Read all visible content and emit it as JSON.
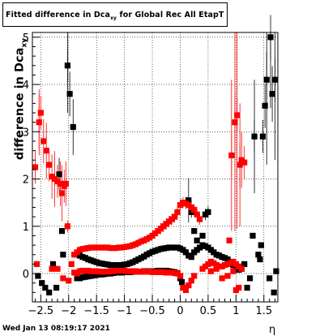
{
  "title": {
    "main": "Fitted difference in Dca",
    "sub": "xy",
    "tail": " for Global Rec All EtapT"
  },
  "ylabel": {
    "main": "difference in Dca",
    "sub": "xy"
  },
  "xlabel": "η",
  "footer": "Wed Jan 13 08:19:17 2021",
  "colors": {
    "black": "#000000",
    "red": "#ff0000",
    "grid": "#000000"
  },
  "chart_data": {
    "type": "scatter",
    "xlim": [
      -2.65,
      1.75
    ],
    "ylim": [
      -0.6,
      5.1
    ],
    "grid": true,
    "x_ticks": [
      -2.5,
      -2,
      -1.5,
      -1,
      -0.5,
      0,
      0.5,
      1,
      1.5
    ],
    "x_tick_labels": [
      "−2.5",
      "−2",
      "−1.5",
      "−1",
      "−0.5",
      "0",
      "0.5",
      "1",
      "1.5"
    ],
    "y_ticks": [
      0,
      1,
      2,
      3,
      4,
      5
    ],
    "y_tick_labels": [
      "0",
      "1",
      "2",
      "3",
      "4",
      "5"
    ],
    "series": [
      {
        "color": "#000000",
        "points": [
          [
            -2.55,
            -0.05
          ],
          [
            -2.48,
            -0.2
          ],
          [
            -2.42,
            -0.3
          ],
          [
            -2.35,
            -0.4
          ],
          [
            -2.28,
            0.2
          ],
          [
            -2.22,
            -0.3
          ],
          [
            -2.17,
            2.1
          ],
          [
            -2.12,
            0.9
          ],
          [
            -2.1,
            0.4
          ],
          [
            -2.02,
            4.4
          ],
          [
            -1.98,
            3.8
          ],
          [
            -1.92,
            3.1
          ],
          [
            -1.85,
            -0.1
          ],
          [
            -1.8,
            -0.1
          ],
          [
            -1.75,
            -0.08
          ],
          [
            -1.7,
            -0.07
          ],
          [
            -1.65,
            -0.06
          ],
          [
            -1.6,
            -0.05
          ],
          [
            -1.55,
            -0.04
          ],
          [
            -1.5,
            -0.03
          ],
          [
            -1.45,
            -0.02
          ],
          [
            -1.4,
            -0.02
          ],
          [
            -1.35,
            -0.01
          ],
          [
            -1.3,
            0.0
          ],
          [
            -1.25,
            0.0
          ],
          [
            -1.2,
            0.01
          ],
          [
            -1.15,
            0.02
          ],
          [
            -1.1,
            0.02
          ],
          [
            -1.05,
            0.02
          ],
          [
            -1.0,
            0.03
          ],
          [
            -0.95,
            0.03
          ],
          [
            -0.9,
            0.03
          ],
          [
            -0.85,
            0.04
          ],
          [
            -0.8,
            0.04
          ],
          [
            -0.75,
            0.04
          ],
          [
            -0.7,
            0.04
          ],
          [
            -0.65,
            0.05
          ],
          [
            -0.6,
            0.05
          ],
          [
            -0.55,
            0.05
          ],
          [
            -0.5,
            0.05
          ],
          [
            -0.45,
            0.05
          ],
          [
            -0.4,
            0.06
          ],
          [
            -0.35,
            0.06
          ],
          [
            -0.3,
            0.06
          ],
          [
            -0.25,
            0.06
          ],
          [
            -0.2,
            0.05
          ],
          [
            -0.15,
            0.04
          ],
          [
            -0.1,
            0.03
          ],
          [
            -0.05,
            0.01
          ],
          [
            0.0,
            -0.1
          ],
          [
            0.03,
            -0.18
          ],
          [
            -1.85,
            0.4
          ],
          [
            -1.8,
            0.38
          ],
          [
            -1.75,
            0.35
          ],
          [
            -1.7,
            0.33
          ],
          [
            -1.65,
            0.3
          ],
          [
            -1.6,
            0.28
          ],
          [
            -1.55,
            0.26
          ],
          [
            -1.5,
            0.24
          ],
          [
            -1.45,
            0.22
          ],
          [
            -1.4,
            0.21
          ],
          [
            -1.35,
            0.2
          ],
          [
            -1.3,
            0.19
          ],
          [
            -1.25,
            0.18
          ],
          [
            -1.2,
            0.18
          ],
          [
            -1.15,
            0.18
          ],
          [
            -1.1,
            0.18
          ],
          [
            -1.05,
            0.18
          ],
          [
            -1.0,
            0.19
          ],
          [
            -0.95,
            0.2
          ],
          [
            -0.9,
            0.22
          ],
          [
            -0.85,
            0.24
          ],
          [
            -0.8,
            0.27
          ],
          [
            -0.75,
            0.3
          ],
          [
            -0.7,
            0.33
          ],
          [
            -0.65,
            0.36
          ],
          [
            -0.6,
            0.4
          ],
          [
            -0.55,
            0.43
          ],
          [
            -0.5,
            0.46
          ],
          [
            -0.45,
            0.48
          ],
          [
            -0.4,
            0.5
          ],
          [
            -0.35,
            0.52
          ],
          [
            -0.3,
            0.53
          ],
          [
            -0.25,
            0.54
          ],
          [
            -0.2,
            0.55
          ],
          [
            -0.15,
            0.55
          ],
          [
            -0.1,
            0.55
          ],
          [
            -0.05,
            0.55
          ],
          [
            0.0,
            0.53
          ],
          [
            0.05,
            0.5
          ],
          [
            0.1,
            0.45
          ],
          [
            0.15,
            0.38
          ],
          [
            0.2,
            0.35
          ],
          [
            0.25,
            0.45
          ],
          [
            0.3,
            0.5
          ],
          [
            0.35,
            0.55
          ],
          [
            0.4,
            0.6
          ],
          [
            0.45,
            0.58
          ],
          [
            0.5,
            0.55
          ],
          [
            0.55,
            0.5
          ],
          [
            0.6,
            0.45
          ],
          [
            0.65,
            0.4
          ],
          [
            0.7,
            0.38
          ],
          [
            0.75,
            0.35
          ],
          [
            0.8,
            0.33
          ],
          [
            0.85,
            0.3
          ],
          [
            0.9,
            0.25
          ],
          [
            0.95,
            0.18
          ],
          [
            1.0,
            0.12
          ],
          [
            1.05,
            0.08
          ],
          [
            1.1,
            0.1
          ],
          [
            0.1,
            1.5
          ],
          [
            0.15,
            1.55
          ],
          [
            0.2,
            1.3
          ],
          [
            0.25,
            0.9
          ],
          [
            0.3,
            0.7
          ],
          [
            0.4,
            0.8
          ],
          [
            0.45,
            1.25
          ],
          [
            0.5,
            1.3
          ],
          [
            1.15,
            0.2
          ],
          [
            1.2,
            -0.3
          ],
          [
            1.25,
            -0.1
          ],
          [
            1.3,
            0.8
          ],
          [
            1.33,
            2.9
          ],
          [
            1.4,
            0.4
          ],
          [
            1.45,
            0.6
          ],
          [
            1.48,
            2.9
          ],
          [
            1.52,
            3.55
          ],
          [
            1.55,
            4.1
          ],
          [
            1.6,
            -0.1
          ],
          [
            1.62,
            5.0
          ],
          [
            1.65,
            3.8
          ],
          [
            1.68,
            -0.4
          ],
          [
            1.7,
            4.1
          ],
          [
            1.72,
            0.05
          ],
          [
            1.43,
            0.3
          ]
        ]
      },
      {
        "color": "#ff0000",
        "points": [
          [
            -2.6,
            2.25
          ],
          [
            -2.57,
            0.2
          ],
          [
            -2.53,
            3.2
          ],
          [
            -2.5,
            3.4
          ],
          [
            -2.45,
            2.8
          ],
          [
            -2.4,
            2.6
          ],
          [
            -2.35,
            2.3
          ],
          [
            -2.3,
            2.05
          ],
          [
            -2.25,
            2.0
          ],
          [
            -2.2,
            1.95
          ],
          [
            -2.15,
            1.9
          ],
          [
            -2.12,
            1.7
          ],
          [
            -2.08,
            1.85
          ],
          [
            -2.05,
            1.9
          ],
          [
            -2.02,
            1.0
          ],
          [
            -2.3,
            0.1
          ],
          [
            -2.2,
            0.1
          ],
          [
            -2.1,
            -0.1
          ],
          [
            -2.0,
            -0.15
          ],
          [
            -1.95,
            0.2
          ],
          [
            -1.9,
            0.4
          ],
          [
            -1.85,
            0.45
          ],
          [
            -1.8,
            0.5
          ],
          [
            -1.75,
            0.52
          ],
          [
            -1.7,
            0.53
          ],
          [
            -1.65,
            0.54
          ],
          [
            -1.6,
            0.55
          ],
          [
            -1.55,
            0.55
          ],
          [
            -1.5,
            0.55
          ],
          [
            -1.45,
            0.55
          ],
          [
            -1.4,
            0.55
          ],
          [
            -1.35,
            0.55
          ],
          [
            -1.3,
            0.55
          ],
          [
            -1.25,
            0.54
          ],
          [
            -1.2,
            0.54
          ],
          [
            -1.15,
            0.54
          ],
          [
            -1.1,
            0.55
          ],
          [
            -1.05,
            0.55
          ],
          [
            -1.0,
            0.56
          ],
          [
            -0.95,
            0.57
          ],
          [
            -0.9,
            0.58
          ],
          [
            -0.85,
            0.6
          ],
          [
            -0.8,
            0.62
          ],
          [
            -0.75,
            0.65
          ],
          [
            -0.7,
            0.68
          ],
          [
            -0.65,
            0.7
          ],
          [
            -0.6,
            0.73
          ],
          [
            -0.55,
            0.76
          ],
          [
            -0.5,
            0.8
          ],
          [
            -0.45,
            0.85
          ],
          [
            -0.4,
            0.9
          ],
          [
            -0.35,
            0.95
          ],
          [
            -0.3,
            1.0
          ],
          [
            -0.25,
            1.05
          ],
          [
            -0.2,
            1.1
          ],
          [
            -0.15,
            1.15
          ],
          [
            -0.1,
            1.2
          ],
          [
            -0.05,
            1.3
          ],
          [
            0.0,
            1.45
          ],
          [
            0.05,
            1.5
          ],
          [
            0.1,
            1.48
          ],
          [
            0.15,
            1.45
          ],
          [
            0.2,
            1.4
          ],
          [
            0.25,
            1.35
          ],
          [
            0.3,
            1.25
          ],
          [
            0.35,
            1.15
          ],
          [
            -1.9,
            0.02
          ],
          [
            -1.85,
            0.0
          ],
          [
            -1.8,
            0.05
          ],
          [
            -1.75,
            0.06
          ],
          [
            -1.7,
            0.06
          ],
          [
            -1.65,
            0.06
          ],
          [
            -1.6,
            0.05
          ],
          [
            -1.55,
            0.05
          ],
          [
            -1.5,
            0.05
          ],
          [
            -1.45,
            0.04
          ],
          [
            -1.4,
            0.04
          ],
          [
            -1.35,
            0.04
          ],
          [
            -1.3,
            0.04
          ],
          [
            -1.25,
            0.05
          ],
          [
            -1.2,
            0.05
          ],
          [
            -1.15,
            0.06
          ],
          [
            -1.1,
            0.06
          ],
          [
            -1.05,
            0.06
          ],
          [
            -1.0,
            0.06
          ],
          [
            -0.95,
            0.05
          ],
          [
            -0.9,
            0.05
          ],
          [
            -0.85,
            0.05
          ],
          [
            -0.8,
            0.05
          ],
          [
            -0.75,
            0.04
          ],
          [
            -0.7,
            0.04
          ],
          [
            -0.65,
            0.04
          ],
          [
            -0.6,
            0.04
          ],
          [
            -0.55,
            0.04
          ],
          [
            -0.5,
            0.03
          ],
          [
            -0.45,
            0.03
          ],
          [
            -0.4,
            0.03
          ],
          [
            -0.35,
            0.03
          ],
          [
            -0.3,
            0.03
          ],
          [
            -0.25,
            0.02
          ],
          [
            -0.2,
            0.02
          ],
          [
            -0.15,
            0.02
          ],
          [
            -0.1,
            0.01
          ],
          [
            -0.05,
            0.0
          ],
          [
            0.0,
            -0.05
          ],
          [
            0.05,
            -0.3
          ],
          [
            0.1,
            -0.35
          ],
          [
            0.15,
            -0.25
          ],
          [
            0.2,
            -0.15
          ],
          [
            0.25,
            -0.05
          ],
          [
            0.4,
            0.1
          ],
          [
            0.45,
            0.15
          ],
          [
            0.5,
            0.2
          ],
          [
            0.55,
            0.25
          ],
          [
            0.6,
            0.22
          ],
          [
            0.65,
            0.18
          ],
          [
            0.7,
            0.15
          ],
          [
            0.75,
            0.15
          ],
          [
            0.8,
            0.18
          ],
          [
            0.85,
            0.2
          ],
          [
            0.9,
            0.22
          ],
          [
            0.95,
            0.25
          ],
          [
            1.0,
            0.2
          ],
          [
            1.05,
            0.15
          ],
          [
            1.1,
            0.1
          ],
          [
            0.55,
            0.05
          ],
          [
            0.65,
            0.1
          ],
          [
            0.75,
            -0.1
          ],
          [
            0.85,
            -0.05
          ],
          [
            0.95,
            0.05
          ],
          [
            1.0,
            -0.35
          ],
          [
            1.05,
            -0.3
          ],
          [
            0.88,
            0.7
          ],
          [
            0.92,
            2.5
          ],
          [
            0.98,
            3.2
          ],
          [
            1.02,
            3.35
          ],
          [
            1.07,
            2.3
          ],
          [
            1.1,
            2.4
          ],
          [
            1.15,
            2.35
          ]
        ]
      }
    ]
  }
}
